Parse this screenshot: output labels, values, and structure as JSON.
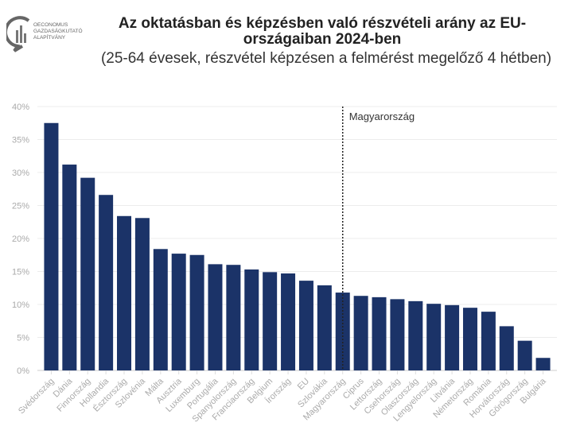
{
  "logo": {
    "lines": [
      "OECONOMUS",
      "GAZDASÁGKUTATÓ",
      "ALAPÍTVÁNY"
    ]
  },
  "chart_data": {
    "type": "bar",
    "title": "Az oktatásban és képzésben való részvételi arány az EU-országaiban 2024-ben",
    "subtitle": "(25-64 évesek, részvétel képzésen a felmérést megelőző 4 hétben)",
    "categories": [
      "Svédország",
      "Dánia",
      "Finnország",
      "Hollandia",
      "Észtország",
      "Szlovénia",
      "Málta",
      "Ausztria",
      "Luxemburg",
      "Portugália",
      "Spanyolország",
      "Franciaország",
      "Belgium",
      "Írország",
      "EU",
      "Szlovákia",
      "Magyarország",
      "Ciprus",
      "Lettország",
      "Csehország",
      "Olaszország",
      "Lengyelország",
      "Litvánia",
      "Németország",
      "Románia",
      "Horvátország",
      "Görögország",
      "Bulgária"
    ],
    "values": [
      37.5,
      31.2,
      29.2,
      26.6,
      23.4,
      23.1,
      18.4,
      17.7,
      17.5,
      16.1,
      16.0,
      15.3,
      14.9,
      14.7,
      13.6,
      12.9,
      11.8,
      11.3,
      11.1,
      10.8,
      10.5,
      10.1,
      9.9,
      9.5,
      8.9,
      6.7,
      4.5,
      1.9
    ],
    "ylim": [
      0,
      40
    ],
    "yticks": [
      "0%",
      "5%",
      "10%",
      "15%",
      "20%",
      "25%",
      "30%",
      "35%",
      "40%"
    ],
    "grid": true,
    "bar_color": "#1b3368",
    "annotation": {
      "label": "Magyarország",
      "category": "Magyarország",
      "style": "dotted vertical line"
    }
  }
}
